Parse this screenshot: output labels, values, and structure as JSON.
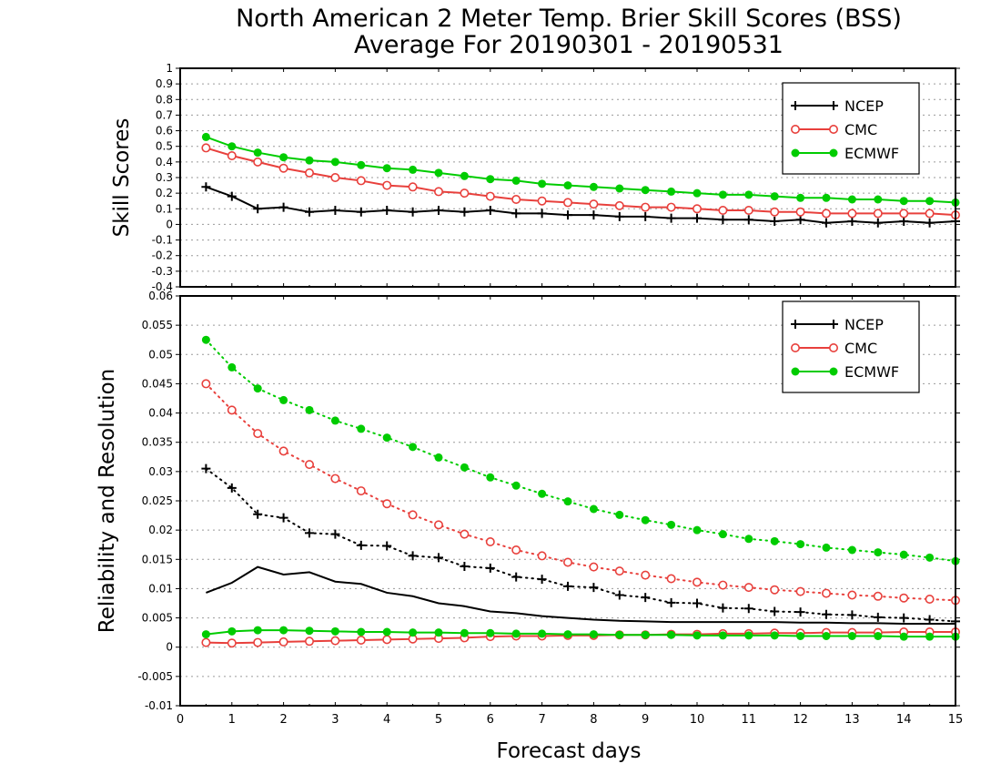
{
  "title_line1": "North American 2 Meter Temp. Brier Skill Scores (BSS)",
  "title_line2": "Average For 20190301 - 20190531",
  "colors": {
    "NCEP": "#000000",
    "CMC": "#e8403c",
    "ECMWF": "#00cc00"
  },
  "chart_data": [
    {
      "type": "line",
      "panel": "top",
      "ylabel": "Skill Scores",
      "xlabel": "",
      "ylim": [
        -0.4,
        1
      ],
      "xlim": [
        0,
        15
      ],
      "yticks": [
        "1",
        "0.9",
        "0.8",
        "0.7",
        "0.6",
        "0.5",
        "0.4",
        "0.3",
        "0.2",
        "0.1",
        "0",
        "-0.1",
        "-0.2",
        "-0.3",
        "-0.4"
      ],
      "grid": true,
      "legend_position": "top-right",
      "x": [
        0.5,
        1,
        1.5,
        2,
        2.5,
        3,
        3.5,
        4,
        4.5,
        5,
        5.5,
        6,
        6.5,
        7,
        7.5,
        8,
        8.5,
        9,
        9.5,
        10,
        10.5,
        11,
        11.5,
        12,
        12.5,
        13,
        13.5,
        14,
        14.5,
        15
      ],
      "series": [
        {
          "name": "NCEP",
          "marker": "plus",
          "style": "solid",
          "values": [
            0.24,
            0.18,
            0.1,
            0.11,
            0.08,
            0.09,
            0.08,
            0.09,
            0.08,
            0.09,
            0.08,
            0.09,
            0.07,
            0.07,
            0.06,
            0.06,
            0.05,
            0.05,
            0.04,
            0.04,
            0.03,
            0.03,
            0.02,
            0.03,
            0.01,
            0.02,
            0.01,
            0.02,
            0.01,
            0.02
          ]
        },
        {
          "name": "CMC",
          "marker": "open-circle",
          "style": "solid",
          "values": [
            0.49,
            0.44,
            0.4,
            0.36,
            0.33,
            0.3,
            0.28,
            0.25,
            0.24,
            0.21,
            0.2,
            0.18,
            0.16,
            0.15,
            0.14,
            0.13,
            0.12,
            0.11,
            0.11,
            0.1,
            0.09,
            0.09,
            0.08,
            0.08,
            0.07,
            0.07,
            0.07,
            0.07,
            0.07,
            0.06
          ]
        },
        {
          "name": "ECMWF",
          "marker": "filled-circle",
          "style": "solid",
          "values": [
            0.56,
            0.5,
            0.46,
            0.43,
            0.41,
            0.4,
            0.38,
            0.36,
            0.35,
            0.33,
            0.31,
            0.29,
            0.28,
            0.26,
            0.25,
            0.24,
            0.23,
            0.22,
            0.21,
            0.2,
            0.19,
            0.19,
            0.18,
            0.17,
            0.17,
            0.16,
            0.16,
            0.15,
            0.15,
            0.14
          ]
        }
      ]
    },
    {
      "type": "line",
      "panel": "bottom",
      "ylabel": "Reliability and Resolution",
      "xlabel": "Forecast days",
      "ylim": [
        -0.01,
        0.06
      ],
      "xlim": [
        0,
        15
      ],
      "yticks": [
        "0.06",
        "0.055",
        "0.05",
        "0.045",
        "0.04",
        "0.035",
        "0.03",
        "0.025",
        "0.02",
        "0.015",
        "0.01",
        "0.005",
        "0",
        "-0.005",
        "-0.01"
      ],
      "xticks": [
        "0",
        "1",
        "2",
        "3",
        "4",
        "5",
        "6",
        "7",
        "8",
        "9",
        "10",
        "11",
        "12",
        "13",
        "14",
        "15"
      ],
      "grid": true,
      "legend_position": "top-right",
      "x": [
        0.5,
        1,
        1.5,
        2,
        2.5,
        3,
        3.5,
        4,
        4.5,
        5,
        5.5,
        6,
        6.5,
        7,
        7.5,
        8,
        8.5,
        9,
        9.5,
        10,
        10.5,
        11,
        11.5,
        12,
        12.5,
        13,
        13.5,
        14,
        14.5,
        15
      ],
      "series": [
        {
          "name": "NCEP",
          "marker": "plus",
          "style": "dotted",
          "quantity": "resolution",
          "values": [
            0.0305,
            0.0272,
            0.0227,
            0.0221,
            0.0195,
            0.0193,
            0.0174,
            0.0173,
            0.0156,
            0.0153,
            0.0138,
            0.0135,
            0.012,
            0.0116,
            0.0104,
            0.0102,
            0.0089,
            0.0085,
            0.0076,
            0.0075,
            0.0067,
            0.0066,
            0.0061,
            0.006,
            0.0056,
            0.0055,
            0.0051,
            0.005,
            0.0047,
            0.0044
          ]
        },
        {
          "name": "CMC",
          "marker": "open-circle",
          "style": "dotted",
          "quantity": "resolution",
          "values": [
            0.045,
            0.0405,
            0.0365,
            0.0335,
            0.0312,
            0.0288,
            0.0267,
            0.0245,
            0.0226,
            0.0209,
            0.0193,
            0.018,
            0.0166,
            0.0156,
            0.0145,
            0.0137,
            0.013,
            0.0123,
            0.0117,
            0.0111,
            0.0106,
            0.0102,
            0.0098,
            0.0095,
            0.0092,
            0.0089,
            0.0087,
            0.0084,
            0.0082,
            0.008
          ]
        },
        {
          "name": "ECMWF",
          "marker": "filled-circle",
          "style": "dotted",
          "quantity": "resolution",
          "values": [
            0.0525,
            0.0478,
            0.0442,
            0.0422,
            0.0405,
            0.0387,
            0.0373,
            0.0358,
            0.0342,
            0.0324,
            0.0307,
            0.029,
            0.0276,
            0.0262,
            0.0249,
            0.0236,
            0.0226,
            0.0217,
            0.0209,
            0.02,
            0.0193,
            0.0185,
            0.0181,
            0.0176,
            0.017,
            0.0166,
            0.0162,
            0.0158,
            0.0153,
            0.0147
          ]
        },
        {
          "name": "NCEP",
          "marker": "none",
          "style": "solid",
          "quantity": "reliability",
          "values": [
            0.0093,
            0.011,
            0.0137,
            0.0124,
            0.0128,
            0.0112,
            0.0108,
            0.0093,
            0.0087,
            0.0075,
            0.007,
            0.0061,
            0.0058,
            0.0053,
            0.005,
            0.0047,
            0.0045,
            0.0044,
            0.0043,
            0.0043,
            0.0043,
            0.0043,
            0.0043,
            0.0042,
            0.0042,
            0.0041,
            0.0041,
            0.004,
            0.004,
            0.004
          ]
        },
        {
          "name": "CMC",
          "marker": "open-circle",
          "style": "solid",
          "quantity": "reliability",
          "values": [
            0.0008,
            0.0007,
            0.0008,
            0.0009,
            0.001,
            0.0011,
            0.0012,
            0.0013,
            0.0014,
            0.0015,
            0.0016,
            0.0018,
            0.0019,
            0.0019,
            0.002,
            0.002,
            0.0021,
            0.0021,
            0.0022,
            0.0022,
            0.0023,
            0.0023,
            0.0024,
            0.0024,
            0.0025,
            0.0025,
            0.0025,
            0.0026,
            0.0026,
            0.0026
          ]
        },
        {
          "name": "ECMWF",
          "marker": "filled-circle",
          "style": "solid",
          "quantity": "reliability",
          "values": [
            0.0022,
            0.0027,
            0.0029,
            0.0029,
            0.0028,
            0.0027,
            0.0026,
            0.0026,
            0.0025,
            0.0025,
            0.0024,
            0.0024,
            0.0023,
            0.0023,
            0.0022,
            0.0022,
            0.0021,
            0.0021,
            0.0021,
            0.002,
            0.002,
            0.002,
            0.002,
            0.0019,
            0.0019,
            0.0019,
            0.0019,
            0.0018,
            0.0018,
            0.0018
          ]
        }
      ]
    }
  ]
}
